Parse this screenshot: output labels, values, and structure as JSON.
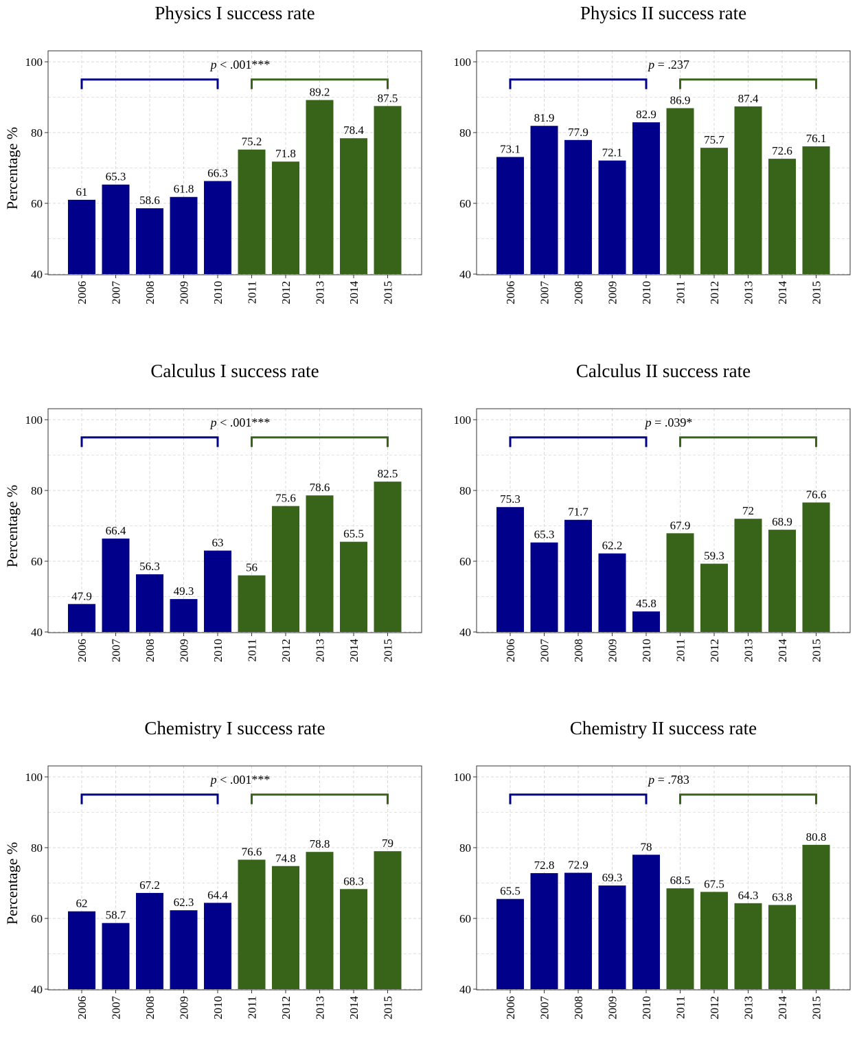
{
  "colors": {
    "blue": "#00008b",
    "green": "#386419",
    "grid": "#d9d9d9",
    "frame": "#333333"
  },
  "chart_data": [
    {
      "type": "bar",
      "title": "Physics I success rate",
      "ylabel": "Percentage %",
      "xlabel": "",
      "ylim": [
        40,
        100
      ],
      "yticks": [
        40,
        60,
        80,
        100
      ],
      "categories": [
        "2006",
        "2007",
        "2008",
        "2009",
        "2010",
        "2011",
        "2012",
        "2013",
        "2014",
        "2015"
      ],
      "values": [
        61,
        65.3,
        58.6,
        61.8,
        66.3,
        75.2,
        71.8,
        89.2,
        78.4,
        87.5
      ],
      "labels": [
        "61",
        "65.3",
        "58.6",
        "61.8",
        "66.3",
        "75.2",
        "71.8",
        "89.2",
        "78.4",
        "87.5"
      ],
      "groups": [
        {
          "name": "2006–2010",
          "range": [
            0,
            4
          ],
          "color": "blue"
        },
        {
          "name": "2011–2015",
          "range": [
            5,
            9
          ],
          "color": "green"
        }
      ],
      "p_text": {
        "p": "p",
        "rest": " < .001***"
      },
      "bracket_level": 95
    },
    {
      "type": "bar",
      "title": "Physics II success rate",
      "ylabel": "",
      "xlabel": "",
      "ylim": [
        40,
        100
      ],
      "yticks": [
        40,
        60,
        80,
        100
      ],
      "categories": [
        "2006",
        "2007",
        "2008",
        "2009",
        "2010",
        "2011",
        "2012",
        "2013",
        "2014",
        "2015"
      ],
      "values": [
        73.1,
        81.9,
        77.9,
        72.1,
        82.9,
        86.9,
        75.7,
        87.4,
        72.6,
        76.1
      ],
      "labels": [
        "73.1",
        "81.9",
        "77.9",
        "72.1",
        "82.9",
        "86.9",
        "75.7",
        "87.4",
        "72.6",
        "76.1"
      ],
      "groups": [
        {
          "name": "2006–2010",
          "range": [
            0,
            4
          ],
          "color": "blue"
        },
        {
          "name": "2011–2015",
          "range": [
            5,
            9
          ],
          "color": "green"
        }
      ],
      "p_text": {
        "p": "p",
        "rest": " = .237"
      },
      "bracket_level": 95
    },
    {
      "type": "bar",
      "title": "Calculus I success rate",
      "ylabel": "Percentage %",
      "xlabel": "",
      "ylim": [
        40,
        100
      ],
      "yticks": [
        40,
        60,
        80,
        100
      ],
      "categories": [
        "2006",
        "2007",
        "2008",
        "2009",
        "2010",
        "2011",
        "2012",
        "2013",
        "2014",
        "2015"
      ],
      "values": [
        47.9,
        66.4,
        56.3,
        49.3,
        63,
        56,
        75.6,
        78.6,
        65.5,
        82.5
      ],
      "labels": [
        "47.9",
        "66.4",
        "56.3",
        "49.3",
        "63",
        "56",
        "75.6",
        "78.6",
        "65.5",
        "82.5"
      ],
      "groups": [
        {
          "name": "2006–2010",
          "range": [
            0,
            4
          ],
          "color": "blue"
        },
        {
          "name": "2011–2015",
          "range": [
            5,
            9
          ],
          "color": "green"
        }
      ],
      "p_text": {
        "p": "p",
        "rest": " < .001***"
      },
      "bracket_level": 95
    },
    {
      "type": "bar",
      "title": "Calculus II success rate",
      "ylabel": "",
      "xlabel": "",
      "ylim": [
        40,
        100
      ],
      "yticks": [
        40,
        60,
        80,
        100
      ],
      "categories": [
        "2006",
        "2007",
        "2008",
        "2009",
        "2010",
        "2011",
        "2012",
        "2013",
        "2014",
        "2015"
      ],
      "values": [
        75.3,
        65.3,
        71.7,
        62.2,
        45.8,
        67.9,
        59.3,
        72,
        68.9,
        76.6
      ],
      "labels": [
        "75.3",
        "65.3",
        "71.7",
        "62.2",
        "45.8",
        "67.9",
        "59.3",
        "72",
        "68.9",
        "76.6"
      ],
      "groups": [
        {
          "name": "2006–2010",
          "range": [
            0,
            4
          ],
          "color": "blue"
        },
        {
          "name": "2011–2015",
          "range": [
            5,
            9
          ],
          "color": "green"
        }
      ],
      "p_text": {
        "p": "p",
        "rest": " = .039*"
      },
      "bracket_level": 95
    },
    {
      "type": "bar",
      "title": "Chemistry I success rate",
      "ylabel": "Percentage %",
      "xlabel": "",
      "ylim": [
        40,
        100
      ],
      "yticks": [
        40,
        60,
        80,
        100
      ],
      "categories": [
        "2006",
        "2007",
        "2008",
        "2009",
        "2010",
        "2011",
        "2012",
        "2013",
        "2014",
        "2015"
      ],
      "values": [
        62,
        58.7,
        67.2,
        62.3,
        64.4,
        76.6,
        74.8,
        78.8,
        68.3,
        79
      ],
      "labels": [
        "62",
        "58.7",
        "67.2",
        "62.3",
        "64.4",
        "76.6",
        "74.8",
        "78.8",
        "68.3",
        "79"
      ],
      "groups": [
        {
          "name": "2006–2010",
          "range": [
            0,
            4
          ],
          "color": "blue"
        },
        {
          "name": "2011–2015",
          "range": [
            5,
            9
          ],
          "color": "green"
        }
      ],
      "p_text": {
        "p": "p",
        "rest": " < .001***"
      },
      "bracket_level": 95
    },
    {
      "type": "bar",
      "title": "Chemistry II success rate",
      "ylabel": "",
      "xlabel": "",
      "ylim": [
        40,
        100
      ],
      "yticks": [
        40,
        60,
        80,
        100
      ],
      "categories": [
        "2006",
        "2007",
        "2008",
        "2009",
        "2010",
        "2011",
        "2012",
        "2013",
        "2014",
        "2015"
      ],
      "values": [
        65.5,
        72.8,
        72.9,
        69.3,
        78,
        68.5,
        67.5,
        64.3,
        63.8,
        80.8
      ],
      "labels": [
        "65.5",
        "72.8",
        "72.9",
        "69.3",
        "78",
        "68.5",
        "67.5",
        "64.3",
        "63.8",
        "80.8"
      ],
      "groups": [
        {
          "name": "2006–2010",
          "range": [
            0,
            4
          ],
          "color": "blue"
        },
        {
          "name": "2011–2015",
          "range": [
            5,
            9
          ],
          "color": "green"
        }
      ],
      "p_text": {
        "p": "p",
        "rest": " = .783"
      },
      "bracket_level": 95
    }
  ]
}
